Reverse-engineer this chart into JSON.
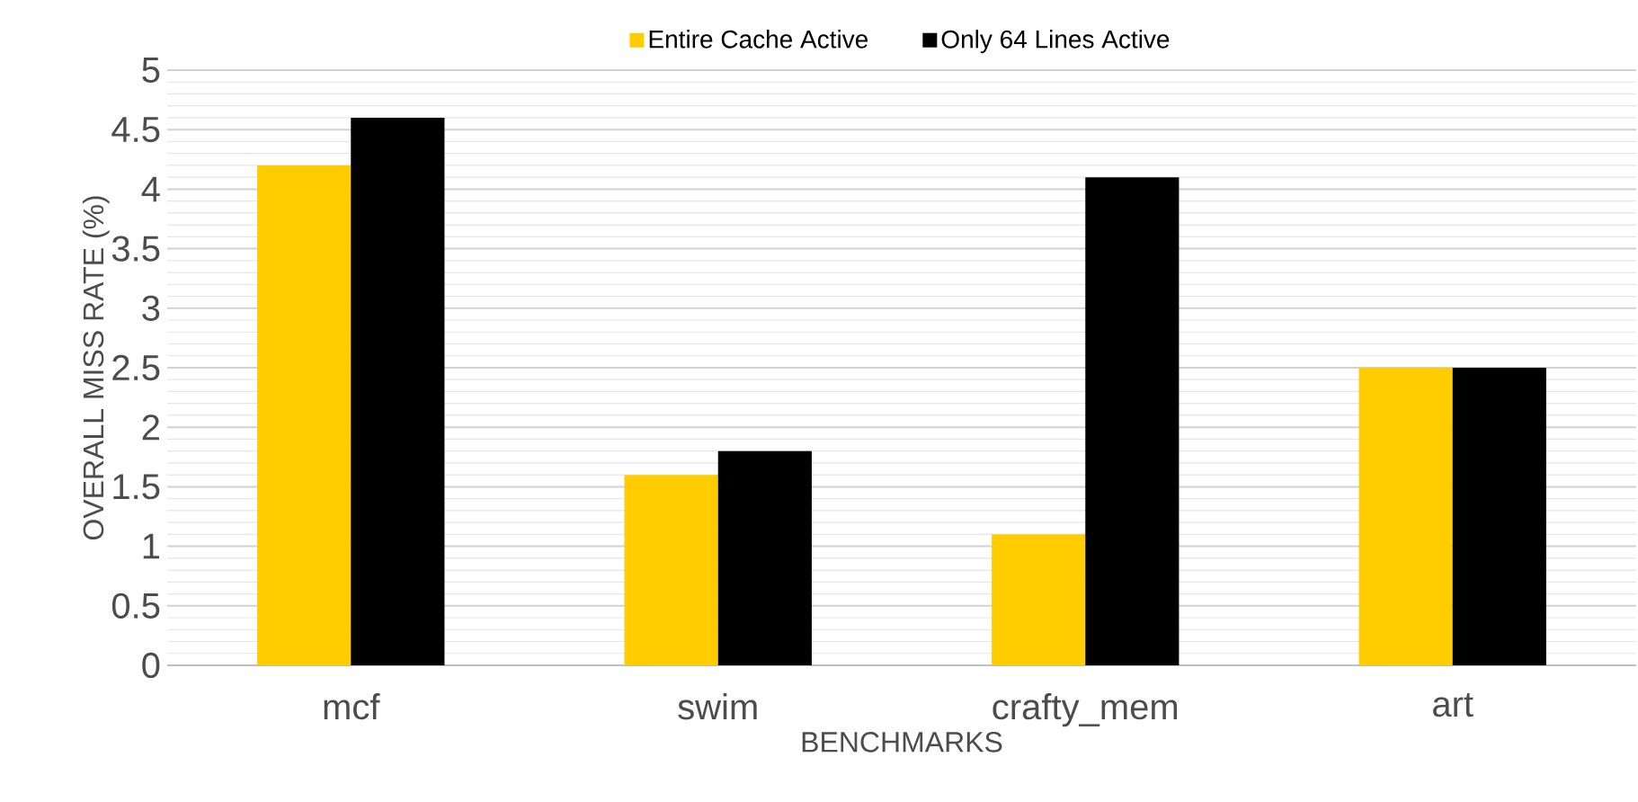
{
  "chart_data": {
    "type": "bar",
    "xlabel": "BENCHMARKS",
    "ylabel": "OVERALL MISS RATE (%)",
    "categories": [
      "mcf",
      "swim",
      "crafty_mem",
      "art"
    ],
    "series": [
      {
        "name": "Entire Cache Active",
        "color": "#ffcc00",
        "values": [
          4.2,
          1.6,
          1.1,
          2.5
        ]
      },
      {
        "name": "Only 64 Lines Active",
        "color": "#000000",
        "values": [
          4.6,
          1.8,
          4.1,
          2.5
        ]
      }
    ],
    "ylim": [
      0,
      5
    ],
    "yticks": [
      0,
      0.5,
      1,
      1.5,
      2,
      2.5,
      3,
      3.5,
      4,
      4.5,
      5
    ],
    "grid": "y",
    "legend": "top"
  }
}
